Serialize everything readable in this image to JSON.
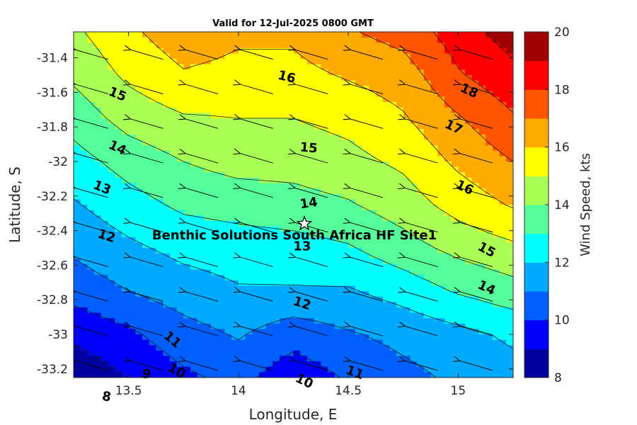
{
  "chart_data": {
    "type": "heatmap",
    "subtype": "filled-contour with wind vectors",
    "title": "Valid for 12-Jul-2025 0800 GMT",
    "xlabel": "Longitude, E",
    "ylabel": "Latitude, S",
    "colorbar_label": "Wind Speed, kts",
    "xlim": [
      13.25,
      15.25
    ],
    "ylim": [
      -33.25,
      -31.25
    ],
    "x_ticks": [
      13.5,
      14,
      14.5,
      15
    ],
    "x_tick_labels": [
      "13.5",
      "14",
      "14.5",
      "15"
    ],
    "y_ticks": [
      -31.4,
      -31.6,
      -31.8,
      -32,
      -32.2,
      -32.4,
      -32.6,
      -32.8,
      -33,
      -33.2
    ],
    "y_tick_labels": [
      "-31.4",
      "-31.6",
      "-31.8",
      "-32",
      "-32.2",
      "-32.4",
      "-32.6",
      "-32.8",
      "-33",
      "-33.2"
    ],
    "color_levels": [
      8,
      9,
      10,
      11,
      12,
      13,
      14,
      15,
      16,
      17,
      18,
      19,
      20
    ],
    "colorbar_ticks": [
      8,
      10,
      12,
      14,
      16,
      18,
      20
    ],
    "colorbar_tick_labels": [
      "8",
      "10",
      "12",
      "14",
      "16",
      "18",
      "20"
    ],
    "band_colors": [
      "#00009f",
      "#0000ff",
      "#0060ff",
      "#00aaff",
      "#00ffff",
      "#55ff99",
      "#aaff55",
      "#ffff00",
      "#ffaa00",
      "#ff5500",
      "#ff0000",
      "#a00000"
    ],
    "grid_lon": [
      13.25,
      13.5,
      13.75,
      14.0,
      14.25,
      14.5,
      14.75,
      15.0,
      15.25
    ],
    "grid_lat": [
      -31.25,
      -31.5,
      -31.75,
      -32.0,
      -32.25,
      -32.5,
      -32.75,
      -33.0,
      -33.25
    ],
    "speed_grid": [
      [
        14.8,
        15.8,
        16.6,
        16.2,
        16.2,
        16.9,
        17.4,
        18.5,
        19.5
      ],
      [
        14.2,
        15.2,
        15.9,
        15.7,
        15.7,
        16.1,
        16.5,
        17.9,
        18.7
      ],
      [
        13.4,
        14.4,
        14.9,
        15.0,
        15.0,
        15.3,
        15.9,
        16.9,
        17.9
      ],
      [
        12.6,
        13.4,
        14.0,
        14.4,
        14.4,
        14.7,
        15.2,
        16.2,
        17.0
      ],
      [
        11.9,
        12.6,
        13.2,
        13.4,
        13.6,
        13.9,
        14.5,
        15.4,
        16.1
      ],
      [
        11.2,
        11.8,
        12.3,
        12.5,
        12.6,
        12.9,
        13.6,
        14.3,
        14.8
      ],
      [
        10.4,
        11.0,
        11.5,
        11.9,
        11.9,
        11.9,
        12.4,
        13.1,
        13.6
      ],
      [
        9.2,
        9.8,
        10.6,
        11.1,
        10.4,
        10.9,
        11.3,
        11.7,
        12.2
      ],
      [
        8.3,
        9.0,
        9.8,
        10.3,
        9.4,
        10.1,
        10.7,
        11.2,
        11.6
      ]
    ],
    "vector_grid": {
      "lon": [
        13.33,
        13.58,
        13.83,
        14.08,
        14.33,
        14.58,
        14.83,
        15.08
      ],
      "lat": [
        -31.38,
        -31.58,
        -31.78,
        -31.98,
        -32.18,
        -32.38,
        -32.58,
        -32.78,
        -32.98,
        -33.18
      ],
      "direction_note": "arrows point toward west-northwest (wind blowing from ESE)"
    },
    "contour_labels": [
      {
        "text": "16",
        "lon": 14.22,
        "lat": -31.51,
        "angle": 14
      },
      {
        "text": "18",
        "lon": 15.05,
        "lat": -31.59,
        "angle": 25
      },
      {
        "text": "17",
        "lon": 14.98,
        "lat": -31.8,
        "angle": 25
      },
      {
        "text": "16",
        "lon": 15.03,
        "lat": -32.15,
        "angle": 25
      },
      {
        "text": "15",
        "lon": 13.45,
        "lat": -31.61,
        "angle": 22
      },
      {
        "text": "15",
        "lon": 14.32,
        "lat": -31.92,
        "angle": 5
      },
      {
        "text": "15",
        "lon": 15.13,
        "lat": -32.51,
        "angle": 28
      },
      {
        "text": "14",
        "lon": 13.45,
        "lat": -31.92,
        "angle": 25
      },
      {
        "text": "14",
        "lon": 14.32,
        "lat": -32.24,
        "angle": -8
      },
      {
        "text": "14",
        "lon": 15.13,
        "lat": -32.73,
        "angle": 25
      },
      {
        "text": "13",
        "lon": 13.38,
        "lat": -32.15,
        "angle": 22
      },
      {
        "text": "13",
        "lon": 14.29,
        "lat": -32.49,
        "angle": 0
      },
      {
        "text": "12",
        "lon": 13.4,
        "lat": -32.43,
        "angle": 18
      },
      {
        "text": "12",
        "lon": 14.29,
        "lat": -32.82,
        "angle": 18
      },
      {
        "text": "11",
        "lon": 13.7,
        "lat": -33.03,
        "angle": 40
      },
      {
        "text": "11",
        "lon": 14.53,
        "lat": -33.22,
        "angle": 20
      },
      {
        "text": "10",
        "lon": 13.72,
        "lat": -33.21,
        "angle": 30
      },
      {
        "text": "10",
        "lon": 14.3,
        "lat": -33.27,
        "angle": 25
      },
      {
        "text": "9",
        "lon": 13.58,
        "lat": -33.23,
        "angle": 20
      },
      {
        "text": "8",
        "lon": 13.4,
        "lat": -33.36,
        "angle": 10
      }
    ],
    "site": {
      "name": "Benthic Solutions South Africa HF Site1",
      "lon": 14.3,
      "lat": -32.36,
      "marker": "star"
    },
    "grid": false
  }
}
